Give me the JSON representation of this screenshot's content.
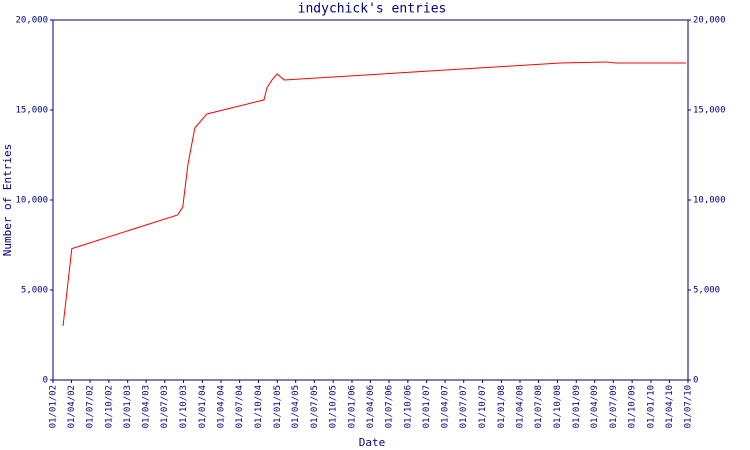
{
  "chart_data": {
    "type": "line",
    "title": "indychick's entries",
    "x_label": "Date",
    "y_label": "Number of Entries",
    "x": [
      "19/02/02",
      "03/04/02",
      "02/09/03",
      "27/09/03",
      "22/10/03",
      "25/11/03",
      "23/01/04",
      "28/10/04",
      "11/11/04",
      "06/12/04",
      "31/12/04",
      "04/02/05",
      "14/10/08",
      "27/05/09",
      "15/07/09",
      "22/06/10"
    ],
    "series": [
      {
        "name": "entries",
        "color": "#ff0000",
        "values": [
          3000,
          7300,
          9170,
          9600,
          11950,
          14000,
          14780,
          15560,
          16220,
          16670,
          17000,
          16670,
          17610,
          17670,
          17610,
          17610
        ]
      }
    ],
    "xticks": [
      "01/01/02",
      "01/04/02",
      "01/07/02",
      "01/10/02",
      "01/01/03",
      "01/04/03",
      "01/07/03",
      "01/10/03",
      "01/01/04",
      "01/04/04",
      "01/07/04",
      "01/10/04",
      "01/01/05",
      "01/04/05",
      "01/07/05",
      "01/10/05",
      "01/01/06",
      "01/04/06",
      "01/07/06",
      "01/10/06",
      "01/01/07",
      "01/04/07",
      "01/07/07",
      "01/10/07",
      "01/01/08",
      "01/04/08",
      "01/07/08",
      "01/10/08",
      "01/01/09",
      "01/04/09",
      "01/07/09",
      "01/10/09",
      "01/01/10",
      "01/04/10",
      "01/07/10"
    ],
    "ylim": [
      0,
      20000
    ],
    "yticks": [
      0,
      {
        "value": 5000,
        "label": "5,000"
      },
      {
        "value": 10000,
        "label": "10,000"
      },
      {
        "value": 15000,
        "label": "15,000"
      },
      {
        "value": 20000,
        "label": "20,000"
      }
    ]
  }
}
